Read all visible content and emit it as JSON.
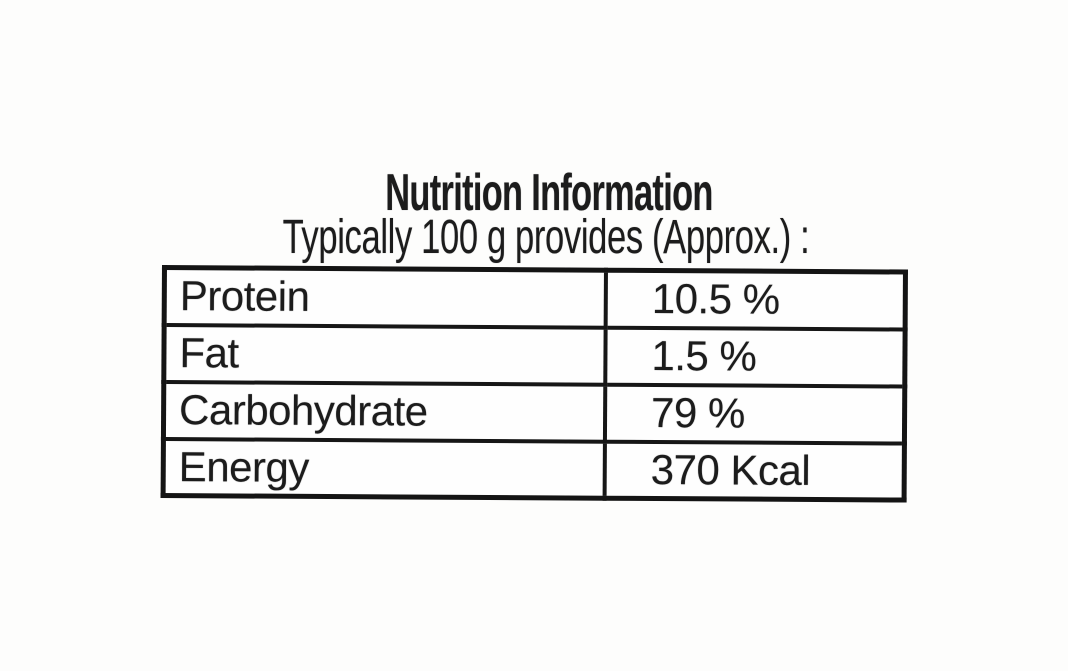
{
  "colors": {
    "paper": "#fdfdfc",
    "ink": "#1c1c1c",
    "table_border": "#161616"
  },
  "label": {
    "title": "Nutrition Information",
    "subtitle": "Typically 100 g provides (Approx.) :",
    "table": {
      "rows": [
        {
          "nutrient": "Protein",
          "value": "10.5 %"
        },
        {
          "nutrient": "Fat",
          "value": "1.5 %"
        },
        {
          "nutrient": "Carbohydrate",
          "value": "79 %"
        },
        {
          "nutrient": "Energy",
          "value": "370 Kcal"
        }
      ]
    }
  }
}
